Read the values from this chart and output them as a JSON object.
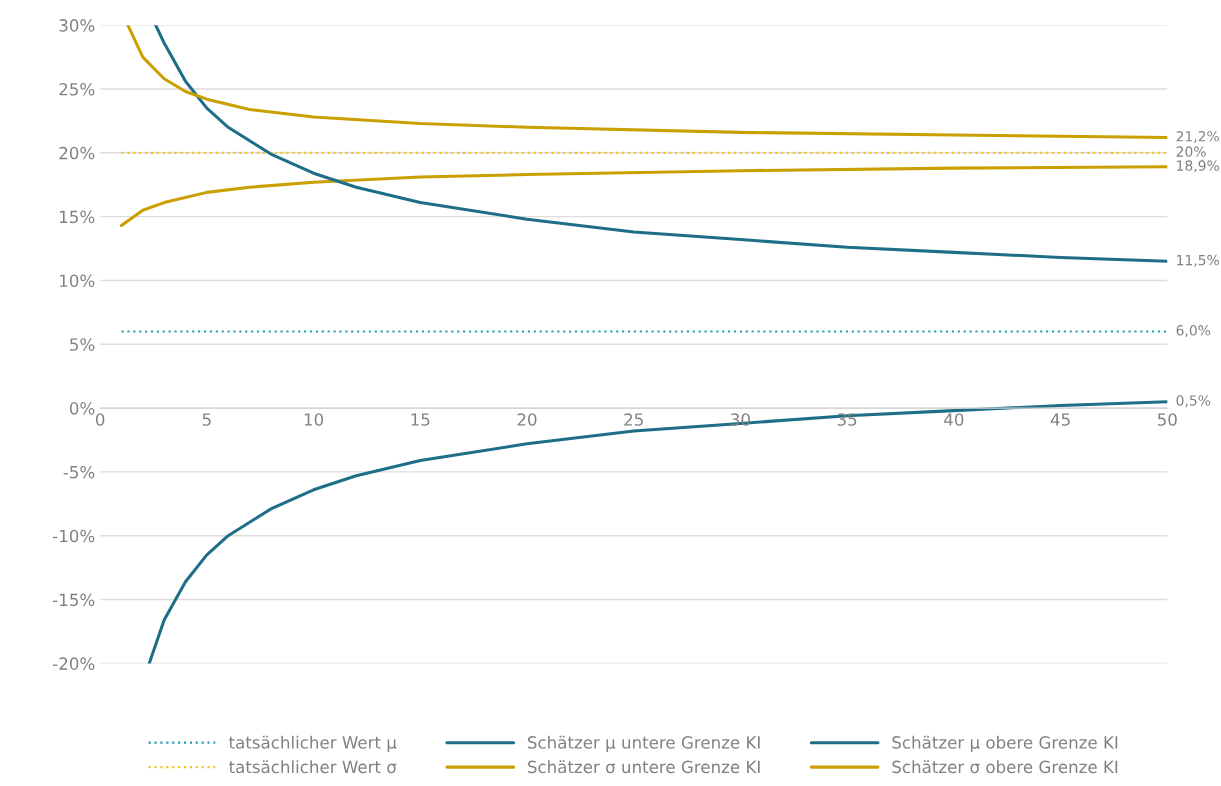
{
  "chart_data": {
    "type": "line",
    "xlim": [
      0,
      50
    ],
    "xticks": [
      0,
      5,
      10,
      15,
      20,
      25,
      30,
      35,
      40,
      45,
      50
    ],
    "ylim": [
      -20,
      30
    ],
    "yticks": [
      {
        "value": -20,
        "label": "-20%"
      },
      {
        "value": -15,
        "label": "-15%"
      },
      {
        "value": -10,
        "label": "-10%"
      },
      {
        "value": -5,
        "label": "-5%"
      },
      {
        "value": 0,
        "label": "0%"
      },
      {
        "value": 5,
        "label": "5%"
      },
      {
        "value": 10,
        "label": "10%"
      },
      {
        "value": 15,
        "label": "15%"
      },
      {
        "value": 20,
        "label": "20%"
      },
      {
        "value": 25,
        "label": "25%"
      },
      {
        "value": 30,
        "label": "30%"
      }
    ],
    "grid": "y",
    "legend": "bottom",
    "marker": "none",
    "series": [
      {
        "name": "tatsächlicher Wert μ",
        "color": "#2aa0b4",
        "line_style": "dotted",
        "x": [
          1,
          50
        ],
        "values": [
          6,
          6
        ],
        "value_labels": [
          null,
          "6,0%"
        ]
      },
      {
        "name": "tatsächlicher Wert σ",
        "color": "#f2c42c",
        "line_style": "dotted",
        "x": [
          1,
          50
        ],
        "values": [
          20,
          20
        ],
        "value_labels": [
          null,
          "20%"
        ]
      },
      {
        "name": "Schätzer μ untere Grenze KI",
        "color": "#1f6e88",
        "line_style": "solid",
        "x": [
          2.3,
          3,
          4,
          5,
          6,
          8,
          10,
          12,
          15,
          20,
          25,
          30,
          35,
          40,
          45,
          50
        ],
        "values": [
          -20,
          -16.6,
          -13.6,
          -11.5,
          -10,
          -7.9,
          -6.4,
          -5.3,
          -4.1,
          -2.8,
          -1.8,
          -1.2,
          -0.6,
          -0.2,
          0.2,
          0.5
        ],
        "value_labels": [
          null,
          null,
          null,
          null,
          null,
          null,
          null,
          null,
          null,
          null,
          null,
          null,
          null,
          null,
          null,
          "0,5%"
        ]
      },
      {
        "name": "Schätzer σ untere Grenze KI",
        "color": "#c9a000",
        "line_style": "solid",
        "x": [
          1,
          2,
          3,
          5,
          7,
          10,
          15,
          20,
          30,
          40,
          50
        ],
        "values": [
          14.3,
          15.5,
          16.1,
          16.9,
          17.3,
          17.7,
          18.1,
          18.3,
          18.6,
          18.8,
          18.9
        ],
        "value_labels": [
          null,
          null,
          null,
          null,
          null,
          null,
          null,
          null,
          null,
          null,
          "18,9%"
        ]
      },
      {
        "name": "Schätzer μ obere Grenze KI",
        "color": "#1f6e88",
        "line_style": "solid",
        "x": [
          2.6,
          3,
          4,
          5,
          6,
          8,
          10,
          12,
          15,
          20,
          25,
          30,
          35,
          40,
          45,
          50
        ],
        "values": [
          30,
          28.6,
          25.6,
          23.5,
          22,
          19.9,
          18.4,
          17.3,
          16.1,
          14.8,
          13.8,
          13.2,
          12.6,
          12.2,
          11.8,
          11.5
        ],
        "value_labels": [
          null,
          null,
          null,
          null,
          null,
          null,
          null,
          null,
          null,
          null,
          null,
          null,
          null,
          null,
          null,
          "11,5%"
        ]
      },
      {
        "name": "Schätzer σ obere Grenze KI",
        "color": "#c9a000",
        "line_style": "solid",
        "x": [
          1.3,
          2,
          3,
          4,
          5,
          7,
          10,
          15,
          20,
          30,
          40,
          50
        ],
        "values": [
          30,
          27.5,
          25.8,
          24.8,
          24.2,
          23.4,
          22.8,
          22.3,
          22,
          21.6,
          21.4,
          21.2
        ],
        "value_labels": [
          null,
          null,
          null,
          null,
          null,
          null,
          null,
          null,
          null,
          null,
          null,
          "21,2%"
        ]
      }
    ]
  }
}
